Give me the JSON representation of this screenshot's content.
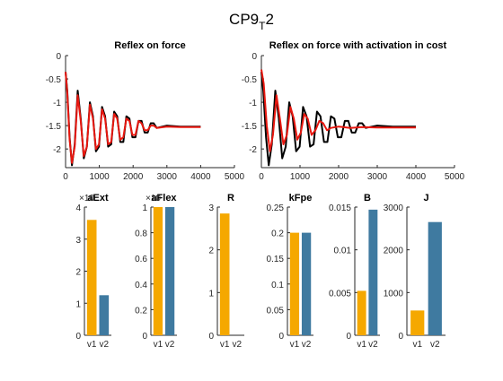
{
  "figure": {
    "title_main": "CP9",
    "title_sub": "T",
    "title_tail": "2"
  },
  "colors": {
    "black": "#000000",
    "red": "#e8170f",
    "v1": "#f5a800",
    "v2": "#3f7aa0",
    "axis": "#262626"
  },
  "chart_data": [
    {
      "type": "line",
      "title": "Reflex on force",
      "xlim": [
        0,
        5000
      ],
      "ylim": [
        -2.4,
        0
      ],
      "xticks": [
        "0",
        "1000",
        "2000",
        "3000",
        "4000",
        "5000"
      ],
      "yticks": [
        "-2",
        "-1.5",
        "-1",
        "-0.5",
        "0"
      ],
      "series": [
        {
          "color": "black",
          "x": [
            0,
            50,
            120,
            190,
            270,
            360,
            450,
            540,
            630,
            720,
            810,
            900,
            990,
            1080,
            1170,
            1260,
            1350,
            1440,
            1530,
            1620,
            1710,
            1800,
            1890,
            1980,
            2070,
            2160,
            2250,
            2340,
            2430,
            2520,
            2610,
            2700,
            3000,
            3400,
            4000
          ],
          "y": [
            -0.35,
            -0.75,
            -1.75,
            -2.35,
            -1.9,
            -0.75,
            -1.35,
            -2.2,
            -1.95,
            -1.0,
            -1.3,
            -2.05,
            -1.95,
            -1.1,
            -1.3,
            -1.95,
            -1.9,
            -1.2,
            -1.3,
            -1.85,
            -1.85,
            -1.3,
            -1.35,
            -1.75,
            -1.75,
            -1.4,
            -1.4,
            -1.65,
            -1.65,
            -1.45,
            -1.45,
            -1.55,
            -1.5,
            -1.52,
            -1.52
          ]
        },
        {
          "color": "red",
          "x": [
            0,
            50,
            120,
            190,
            270,
            360,
            450,
            540,
            630,
            720,
            810,
            900,
            990,
            1080,
            1170,
            1260,
            1350,
            1440,
            1530,
            1620,
            1710,
            1800,
            1890,
            1980,
            2070,
            2160,
            2250,
            2340,
            2430,
            2520,
            2610,
            2700,
            3000,
            3400,
            4000
          ],
          "y": [
            -0.35,
            -0.8,
            -1.8,
            -2.3,
            -1.95,
            -0.85,
            -1.4,
            -2.15,
            -1.95,
            -1.05,
            -1.35,
            -2.0,
            -1.9,
            -1.15,
            -1.35,
            -1.9,
            -1.85,
            -1.25,
            -1.35,
            -1.8,
            -1.75,
            -1.35,
            -1.4,
            -1.7,
            -1.7,
            -1.4,
            -1.45,
            -1.6,
            -1.6,
            -1.5,
            -1.5,
            -1.55,
            -1.52,
            -1.53,
            -1.53
          ]
        }
      ]
    },
    {
      "type": "line",
      "title": "Reflex on force with activation in cost",
      "xlim": [
        0,
        5000
      ],
      "ylim": [
        -2.4,
        0
      ],
      "xticks": [
        "0",
        "1000",
        "2000",
        "3000",
        "4000",
        "5000"
      ],
      "yticks": [
        "-2",
        "-1.5",
        "-1",
        "-0.5",
        "0"
      ],
      "series": [
        {
          "color": "black",
          "x": [
            0,
            50,
            120,
            190,
            270,
            360,
            450,
            540,
            630,
            720,
            810,
            900,
            990,
            1080,
            1170,
            1260,
            1350,
            1440,
            1530,
            1620,
            1710,
            1800,
            1890,
            1980,
            2070,
            2160,
            2250,
            2340,
            2430,
            2520,
            2610,
            2700,
            3000,
            3400,
            4000
          ],
          "y": [
            -0.35,
            -0.75,
            -1.75,
            -2.35,
            -1.9,
            -0.75,
            -1.35,
            -2.2,
            -1.95,
            -1.0,
            -1.3,
            -2.05,
            -1.95,
            -1.1,
            -1.3,
            -1.95,
            -1.9,
            -1.2,
            -1.3,
            -1.85,
            -1.85,
            -1.3,
            -1.35,
            -1.75,
            -1.75,
            -1.4,
            -1.4,
            -1.65,
            -1.65,
            -1.45,
            -1.45,
            -1.55,
            -1.5,
            -1.52,
            -1.52
          ]
        },
        {
          "color": "red",
          "x": [
            0,
            60,
            140,
            220,
            300,
            390,
            480,
            570,
            660,
            750,
            840,
            930,
            1020,
            1110,
            1200,
            1300,
            1400,
            1500,
            1600,
            1700,
            1800,
            2000,
            2300,
            2600,
            3000,
            3500,
            4000
          ],
          "y": [
            -0.3,
            -0.6,
            -1.5,
            -2.05,
            -1.7,
            -0.85,
            -1.35,
            -1.9,
            -1.7,
            -1.1,
            -1.35,
            -1.8,
            -1.65,
            -1.25,
            -1.35,
            -1.7,
            -1.6,
            -1.4,
            -1.45,
            -1.6,
            -1.55,
            -1.52,
            -1.55,
            -1.53,
            -1.54,
            -1.54,
            -1.54
          ]
        }
      ]
    },
    {
      "type": "bar",
      "title": "aExt",
      "exponent_label": "×10",
      "categories": [
        "v1",
        "v2"
      ],
      "values": [
        3.6,
        1.25
      ],
      "ylim": [
        0,
        4
      ],
      "yticks": [
        "0",
        "1",
        "2",
        "3",
        "4"
      ]
    },
    {
      "type": "bar",
      "title": "aFlex",
      "exponent_label": "×10",
      "categories": [
        "v1",
        "v2"
      ],
      "values": [
        1.0,
        1.0
      ],
      "ylim": [
        0,
        1
      ],
      "yticks": [
        "0",
        "0.2",
        "0.4",
        "0.6",
        "0.8",
        "1"
      ]
    },
    {
      "type": "bar",
      "title": "R",
      "categories": [
        "v1",
        "v2"
      ],
      "values": [
        2.85,
        0
      ],
      "ylim": [
        0,
        3
      ],
      "yticks": [
        "0",
        "1",
        "2",
        "3"
      ]
    },
    {
      "type": "bar",
      "title": "kFpe",
      "categories": [
        "v1",
        "v2"
      ],
      "values": [
        0.2,
        0.2
      ],
      "ylim": [
        0,
        0.25
      ],
      "yticks": [
        "0",
        "0.05",
        "0.1",
        "0.15",
        "0.2",
        "0.25"
      ]
    },
    {
      "type": "bar",
      "title": "B",
      "categories": [
        "v1",
        "v2"
      ],
      "values": [
        0.0052,
        0.0147
      ],
      "ylim": [
        0,
        0.015
      ],
      "yticks": [
        "0",
        "0.005",
        "0.01",
        "0.015"
      ]
    },
    {
      "type": "bar",
      "title": "J",
      "categories": [
        "v1",
        "v2"
      ],
      "values": [
        580,
        2650
      ],
      "ylim": [
        0,
        3000
      ],
      "yticks": [
        "0",
        "1000",
        "2000",
        "3000"
      ]
    }
  ]
}
